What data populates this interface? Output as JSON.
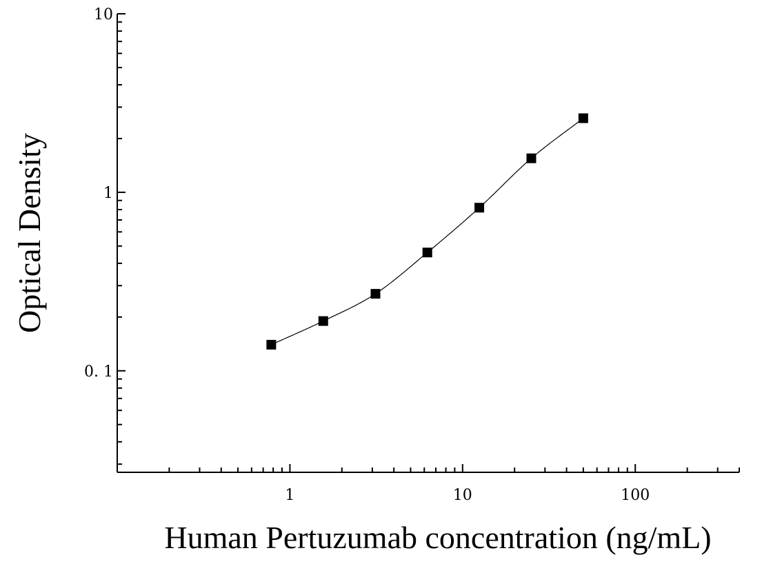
{
  "chart_data": {
    "type": "scatter",
    "xlabel": "Human Pertuzumab concentration (ng/mL)",
    "ylabel": "Optical Density",
    "x_scale": "log",
    "y_scale": "log",
    "xlim": [
      0.1,
      400
    ],
    "ylim": [
      0.027,
      10
    ],
    "x_ticks": [
      {
        "value": 1,
        "label": "1"
      },
      {
        "value": 10,
        "label": "10"
      },
      {
        "value": 100,
        "label": "100"
      }
    ],
    "y_ticks": [
      {
        "value": 0.1,
        "label": "0. 1"
      },
      {
        "value": 1,
        "label": "1"
      },
      {
        "value": 10,
        "label": "10"
      }
    ],
    "grid": false,
    "legend": "none",
    "series": [
      {
        "x": [
          0.78,
          1.56,
          3.13,
          6.25,
          12.5,
          25,
          50
        ],
        "y": [
          0.14,
          0.19,
          0.27,
          0.46,
          0.82,
          1.55,
          2.6
        ],
        "marker": "square",
        "color": "#000000",
        "fit_line": true
      }
    ]
  }
}
